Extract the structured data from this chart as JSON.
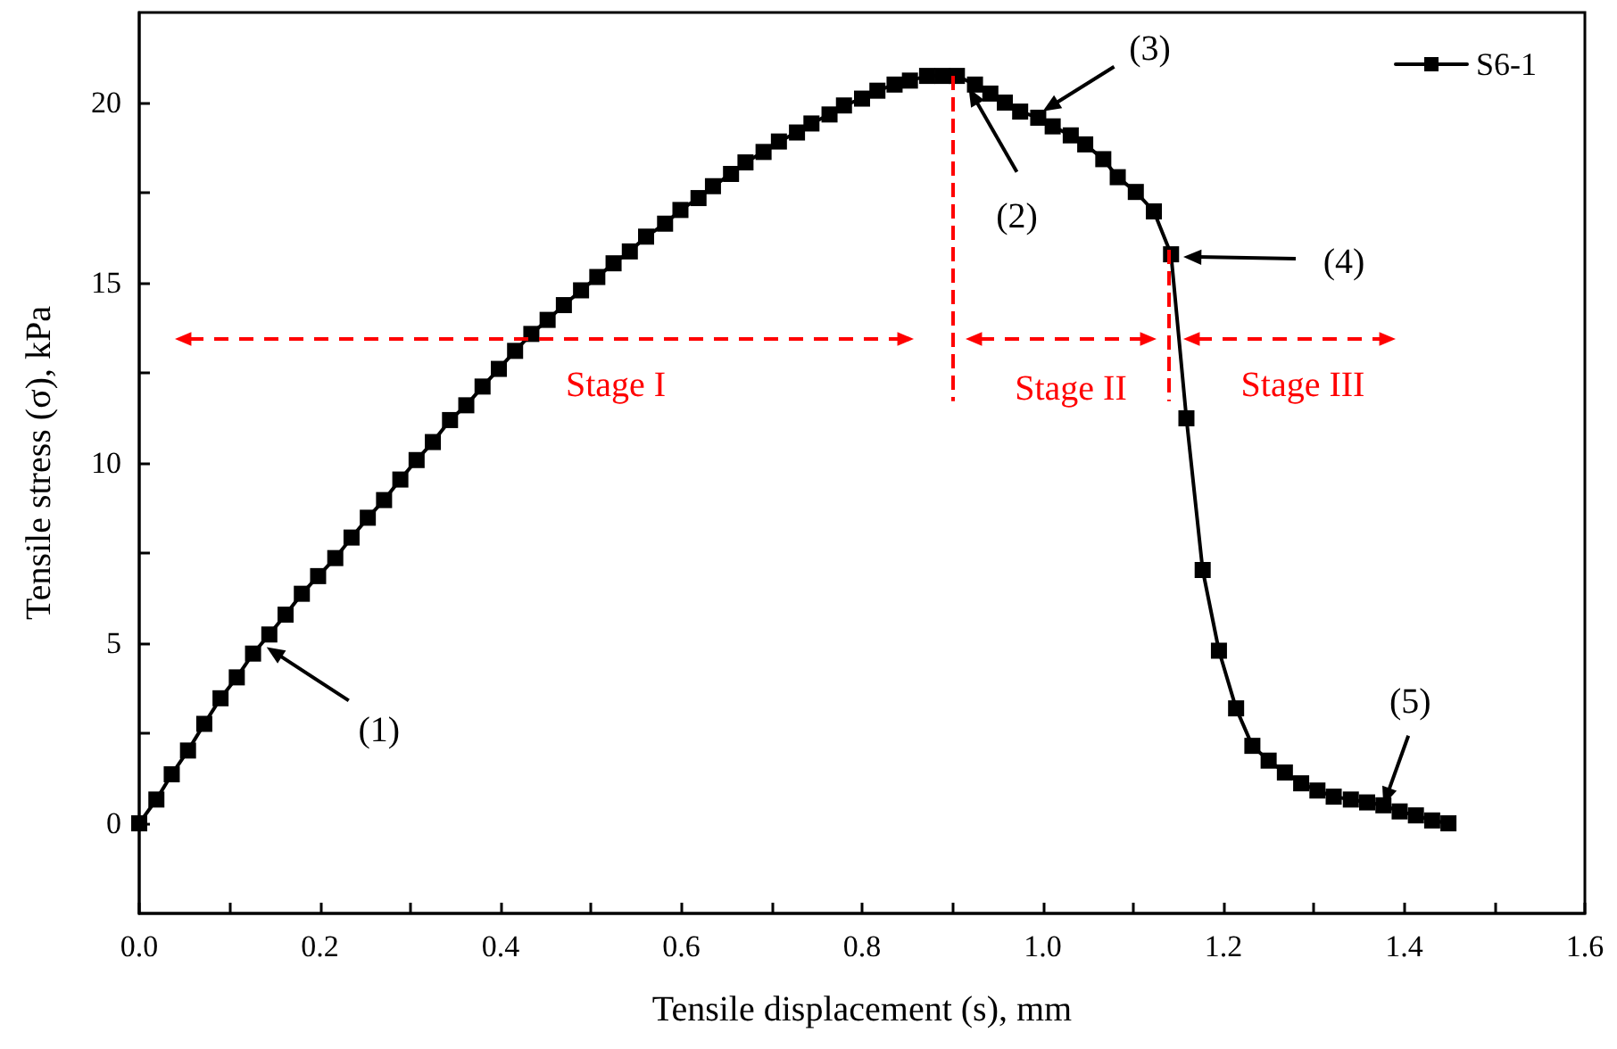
{
  "chart_data": {
    "type": "line",
    "xlabel": "Tensile displacement (s), mm",
    "ylabel": "Tensile stress (σ), kPa",
    "xlim": [
      0,
      1.6
    ],
    "ylim": [
      -2.5,
      22.5
    ],
    "xticks": [
      {
        "value": 0,
        "label": "0.0"
      },
      {
        "value": 0.1,
        "label": null
      },
      0.2,
      {
        "value": 0.3,
        "label": null
      },
      0.4,
      {
        "value": 0.5,
        "label": null
      },
      0.6,
      {
        "value": 0.7,
        "label": null
      },
      0.8,
      {
        "value": 0.9,
        "label": null
      },
      {
        "value": 1,
        "label": "1.0"
      },
      {
        "value": 1.1,
        "label": null
      },
      1.2,
      {
        "value": 1.3,
        "label": null
      },
      1.4,
      {
        "value": 1.5,
        "label": null
      },
      1.6
    ],
    "yticks": [
      0,
      {
        "value": 2.5,
        "label": null
      },
      5,
      {
        "value": 7.5,
        "label": null
      },
      10,
      {
        "value": 12.5,
        "label": null
      },
      15,
      {
        "value": 17.5,
        "label": null
      },
      20
    ],
    "grid": false,
    "legend": "top right",
    "marker": "square",
    "line_style": "solid",
    "series": [
      {
        "name": "S6-1",
        "color": "#000000",
        "x": [
          0,
          0.019,
          0.036,
          0.054,
          0.072,
          0.09,
          0.108,
          0.126,
          0.144,
          0.162,
          0.18,
          0.198,
          0.217,
          0.235,
          0.253,
          0.271,
          0.289,
          0.307,
          0.325,
          0.344,
          0.362,
          0.38,
          0.398,
          0.416,
          0.434,
          0.452,
          0.47,
          0.489,
          0.507,
          0.525,
          0.543,
          0.561,
          0.582,
          0.599,
          0.619,
          0.635,
          0.655,
          0.671,
          0.691,
          0.708,
          0.728,
          0.744,
          0.764,
          0.78,
          0.8,
          0.817,
          0.836,
          0.853,
          0.872,
          0.889,
          0.905,
          0.925,
          0.942,
          0.958,
          0.975,
          0.995,
          1.011,
          1.031,
          1.047,
          1.067,
          1.083,
          1.103,
          1.123,
          1.142,
          1.159,
          1.177,
          1.195,
          1.214,
          1.232,
          1.25,
          1.268,
          1.286,
          1.304,
          1.322,
          1.341,
          1.359,
          1.377,
          1.395,
          1.413,
          1.431,
          1.449
        ],
        "values": [
          0,
          0.66,
          1.36,
          2.02,
          2.76,
          3.47,
          4.05,
          4.71,
          5.24,
          5.79,
          6.37,
          6.86,
          7.36,
          7.93,
          8.48,
          8.97,
          9.54,
          10.08,
          10.58,
          11.19,
          11.6,
          12.12,
          12.61,
          13.11,
          13.58,
          13.97,
          14.38,
          14.79,
          15.16,
          15.54,
          15.87,
          16.28,
          16.64,
          17.02,
          17.35,
          17.68,
          18.02,
          18.34,
          18.63,
          18.92,
          19.17,
          19.42,
          19.67,
          19.92,
          20.11,
          20.33,
          20.5,
          20.61,
          20.74,
          20.74,
          20.74,
          20.5,
          20.25,
          20,
          19.75,
          19.58,
          19.34,
          19.09,
          18.84,
          18.43,
          17.93,
          17.52,
          16.98,
          15.79,
          11.24,
          7.03,
          4.79,
          3.19,
          2.15,
          1.74,
          1.41,
          1.11,
          0.91,
          0.74,
          0.66,
          0.58,
          0.5,
          0.33,
          0.22,
          0.08,
          0
        ]
      }
    ],
    "ref_lines": [
      {
        "axis": "x",
        "value": 0.9,
        "color": "#ff0000",
        "line_style": "dashed"
      },
      {
        "axis": "x",
        "value": 1.14,
        "color": "#ff0000",
        "line_style": "dashed"
      }
    ],
    "annotations": [
      {
        "text": "(1)",
        "x": 0.141,
        "y": 4.89
      },
      {
        "text": "(2)",
        "x": 0.918,
        "y": 20.4
      },
      {
        "text": "(3)",
        "x": 1.0,
        "y": 19.76
      },
      "(4)",
      {
        "text": "(5)",
        "x": 1.377,
        "y": 0.5
      },
      "Stage I",
      "Stage II",
      "Stage III"
    ]
  }
}
